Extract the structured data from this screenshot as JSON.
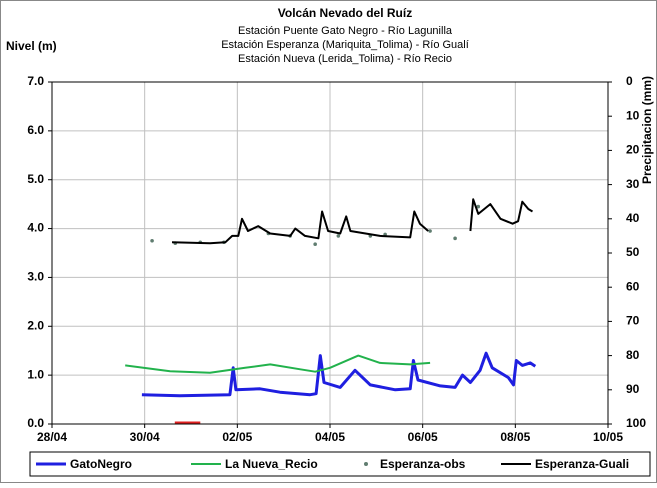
{
  "chart_data": {
    "type": "line",
    "title": "Volcán Nevado del Ruíz",
    "subtitles": [
      "Estación Puente Gato Negro - Río Lagunilla",
      "Estación Esperanza (Mariquita_Tolima) - Río Gualí",
      "Estación Nueva (Lerida_Tolima) - Río Recio"
    ],
    "y_label": "Nivel (m)",
    "y2_label": "Precipitacion (mm)",
    "xlim": [
      0,
      12
    ],
    "xticks": [
      {
        "value": 0,
        "label": "28/04"
      },
      {
        "value": 2,
        "label": "30/04"
      },
      {
        "value": 4,
        "label": "02/05"
      },
      {
        "value": 6,
        "label": "04/05"
      },
      {
        "value": 8,
        "label": "06/05"
      },
      {
        "value": 10,
        "label": "08/05"
      },
      {
        "value": 12,
        "label": "10/05"
      }
    ],
    "ylim": [
      0,
      7
    ],
    "yticks": [
      {
        "value": 0,
        "label": "0.0"
      },
      {
        "value": 1,
        "label": "1.0"
      },
      {
        "value": 2,
        "label": "2.0"
      },
      {
        "value": 3,
        "label": "3.0"
      },
      {
        "value": 4,
        "label": "4.0"
      },
      {
        "value": 5,
        "label": "5.0"
      },
      {
        "value": 6,
        "label": "6.0"
      },
      {
        "value": 7,
        "label": "7.0"
      }
    ],
    "y2lim": [
      100,
      0
    ],
    "y2ticks": [
      0,
      10,
      20,
      30,
      40,
      50,
      60,
      70,
      80,
      90,
      100
    ],
    "grid": true,
    "legend": "bottom",
    "series": [
      {
        "name": "GatoNegro",
        "color": "#1f1fe0",
        "style": "line",
        "width": 3,
        "x": [
          1.94,
          2.76,
          3.84,
          3.91,
          3.97,
          4.49,
          4.92,
          5.57,
          5.7,
          5.79,
          5.87,
          6.22,
          6.54,
          6.87,
          7.41,
          7.73,
          7.8,
          7.9,
          8.38,
          8.7,
          8.86,
          9.03,
          9.24,
          9.37,
          9.5,
          9.85,
          9.96,
          10.02,
          10.15,
          10.32,
          10.43
        ],
        "values": [
          0.6,
          0.58,
          0.6,
          1.15,
          0.7,
          0.72,
          0.65,
          0.6,
          0.62,
          1.4,
          0.85,
          0.75,
          1.1,
          0.8,
          0.7,
          0.72,
          1.3,
          0.9,
          0.78,
          0.75,
          1.0,
          0.85,
          1.1,
          1.45,
          1.15,
          0.95,
          0.8,
          1.3,
          1.2,
          1.25,
          1.18
        ]
      },
      {
        "name": "La Nueva_Recio",
        "color": "#22b24c",
        "style": "line",
        "width": 2,
        "x": [
          1.58,
          2.55,
          3.41,
          4.17,
          4.71,
          5.36,
          5.68,
          6.0,
          6.61,
          7.08,
          7.73,
          8.16
        ],
        "values": [
          1.2,
          1.08,
          1.05,
          1.15,
          1.22,
          1.12,
          1.07,
          1.15,
          1.4,
          1.25,
          1.22,
          1.25
        ]
      },
      {
        "name": "Esperanza-obs",
        "color": "#607d70",
        "style": "markers",
        "width": 2,
        "x": [
          2.16,
          2.66,
          3.2,
          3.71,
          4.67,
          5.14,
          5.68,
          6.18,
          6.87,
          7.19,
          8.16,
          8.7,
          9.2
        ],
        "values": [
          3.75,
          3.7,
          3.72,
          3.72,
          3.9,
          3.85,
          3.68,
          3.85,
          3.85,
          3.88,
          3.95,
          3.8,
          4.45
        ]
      },
      {
        "name": "Esperanza-Guali",
        "color": "#000000",
        "style": "line",
        "width": 2,
        "x": [
          2.59,
          3.41,
          3.74,
          3.89,
          4.02,
          4.1,
          4.23,
          4.45,
          4.71,
          5.14,
          5.25,
          5.46,
          5.75,
          5.83,
          5.96,
          6.22,
          6.35,
          6.44,
          7.08,
          7.73,
          7.82,
          7.94,
          8.12,
          8.6,
          9.03,
          9.09,
          9.2,
          9.46,
          9.68,
          9.94,
          10.06,
          10.15,
          10.28,
          10.37
        ],
        "values": [
          3.72,
          3.7,
          3.72,
          3.85,
          3.85,
          4.2,
          3.95,
          4.05,
          3.9,
          3.85,
          4.0,
          3.85,
          3.8,
          4.35,
          3.95,
          3.9,
          4.25,
          3.95,
          3.85,
          3.82,
          4.35,
          4.1,
          3.95,
          null,
          3.95,
          4.6,
          4.3,
          4.5,
          4.2,
          4.1,
          4.15,
          4.55,
          4.4,
          4.35
        ]
      },
      {
        "color": "#e02020",
        "style": "line",
        "width": 2,
        "x": [
          2.65,
          3.2
        ],
        "values": [
          0.03,
          0.03
        ]
      }
    ]
  }
}
